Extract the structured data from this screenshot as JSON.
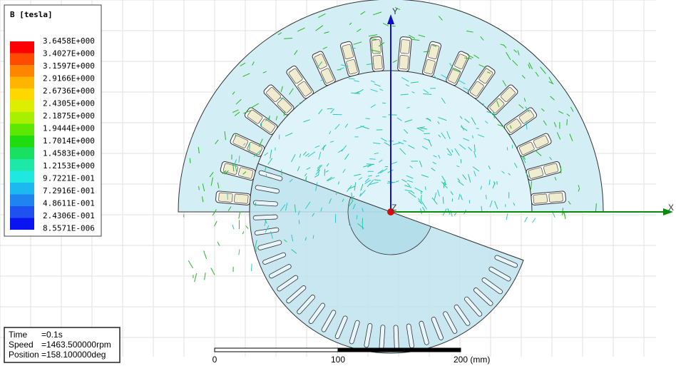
{
  "legend": {
    "title": "B [tesla]",
    "labels": [
      "3.6458E+000",
      "3.4027E+000",
      "3.1597E+000",
      "2.9166E+000",
      "2.6736E+000",
      "2.4305E+000",
      "2.1875E+000",
      "1.9444E+000",
      "1.7014E+000",
      "1.4583E+000",
      "1.2153E+000",
      "9.7221E-001",
      "7.2916E-001",
      "4.8611E-001",
      "2.4306E-001",
      "8.5571E-006"
    ],
    "colors": [
      "#ff0000",
      "#ff4a00",
      "#ff8400",
      "#ffb400",
      "#ffd800",
      "#dcef00",
      "#a6f000",
      "#5ce800",
      "#1fdc10",
      "#19e060",
      "#1ee8a8",
      "#1ee8e0",
      "#1cb8f0",
      "#1f84f0",
      "#1f50f0",
      "#0a14f0"
    ]
  },
  "info": {
    "rows": [
      {
        "key": "Time",
        "value": "=0.1s"
      },
      {
        "key": "Speed",
        "value": "=1463.500000rpm"
      },
      {
        "key": "Position",
        "value": "=158.100000deg"
      }
    ]
  },
  "scale_bar": {
    "labels": [
      "0",
      "100",
      "200 (mm)"
    ]
  },
  "axes": {
    "x": "X",
    "y": "Y",
    "z": "Z"
  }
}
